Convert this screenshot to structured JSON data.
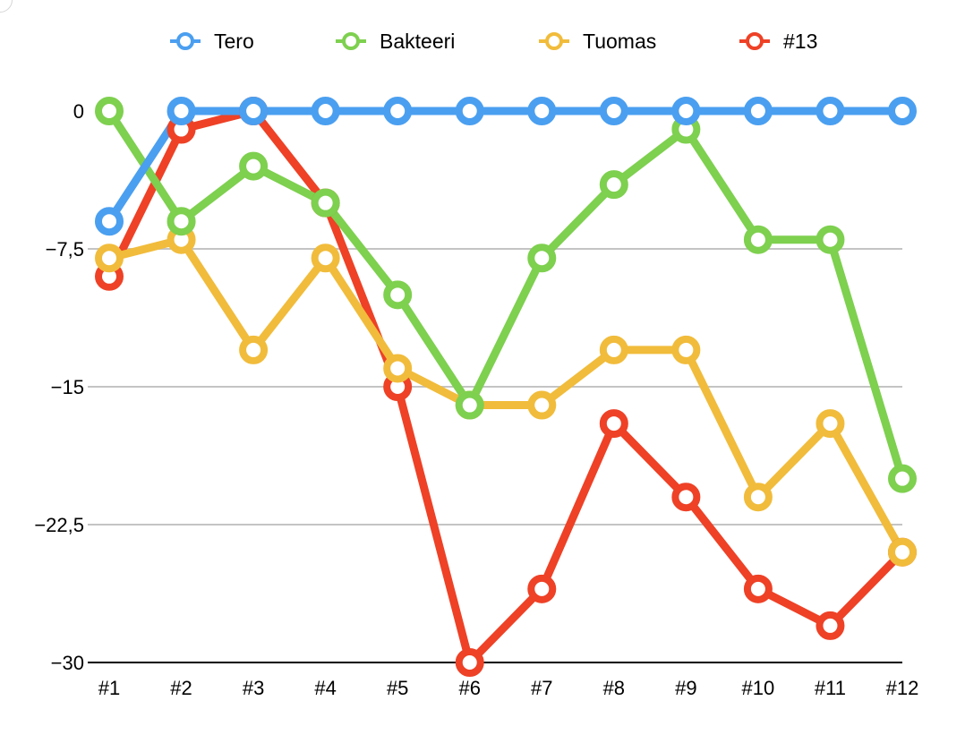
{
  "chart_data": {
    "type": "line",
    "title": "",
    "xlabel": "",
    "ylabel": "",
    "categories": [
      "#1",
      "#2",
      "#3",
      "#4",
      "#5",
      "#6",
      "#7",
      "#8",
      "#9",
      "#10",
      "#11",
      "#12"
    ],
    "y_ticks": [
      "0",
      "−7,5",
      "−15",
      "−22,5",
      "−30"
    ],
    "y_tick_values": [
      0,
      -7.5,
      -15,
      -22.5,
      -30
    ],
    "ylim": [
      -30,
      0
    ],
    "grid": true,
    "legend": "top",
    "series": [
      {
        "name": "Tero",
        "color": "#4a9ff0",
        "values": [
          -6,
          0,
          0,
          0,
          0,
          0,
          0,
          0,
          0,
          0,
          0,
          0
        ]
      },
      {
        "name": "Bakteeri",
        "color": "#7ed04f",
        "values": [
          0,
          -6,
          -3,
          -5,
          -10,
          -16,
          -8,
          -4,
          -1,
          -7,
          -7,
          -20
        ]
      },
      {
        "name": "Tuomas",
        "color": "#f1bc3b",
        "values": [
          -8,
          -7,
          -13,
          -8,
          -14,
          -16,
          -16,
          -13,
          -13,
          -21,
          -17,
          -24
        ]
      },
      {
        "name": "#13",
        "color": "#ee4126",
        "values": [
          -9,
          -1,
          0,
          -5,
          -15,
          -30,
          -26,
          -17,
          -21,
          -26,
          -28,
          -24
        ]
      }
    ]
  }
}
